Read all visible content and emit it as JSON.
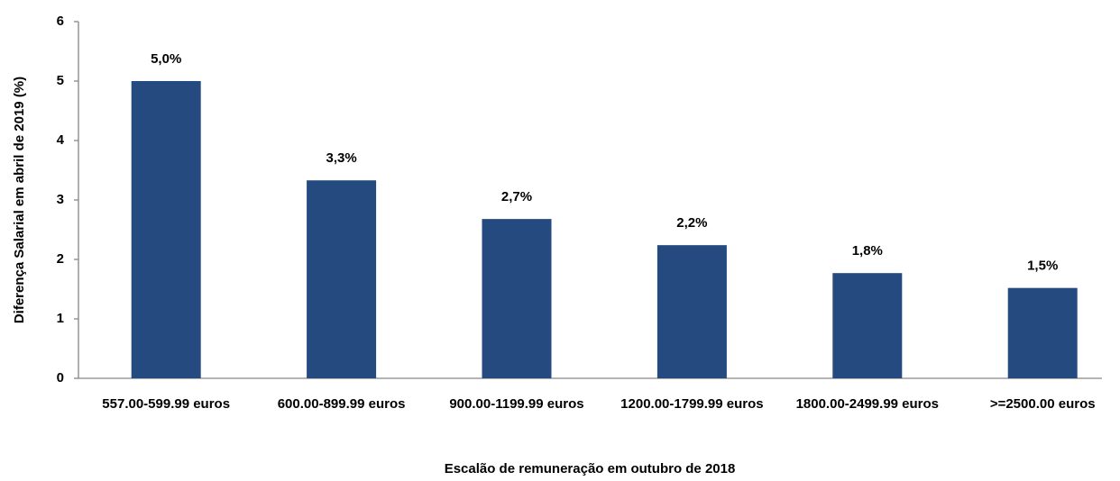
{
  "chart_data": {
    "type": "bar",
    "x_label": "Escalão de remuneração em outubro de 2018",
    "y_label": "Diferença Salarial em abril de 2019 (%)",
    "categories": [
      "557.00-599.99 euros",
      "600.00-899.99 euros",
      "900.00-1199.99 euros",
      "1200.00-1799.99 euros",
      "1800.00-2499.99 euros",
      ">=2500.00 euros"
    ],
    "values": [
      5.0,
      3.33,
      2.68,
      2.24,
      1.77,
      1.52
    ],
    "value_labels": [
      "5,0%",
      "3,3%",
      "2,7%",
      "2,2%",
      "1,8%",
      "1,5%"
    ],
    "color": "#244a80",
    "ylim": [
      0,
      6
    ],
    "yticks": [
      0,
      1,
      2,
      3,
      4,
      5,
      6
    ],
    "grid": false
  }
}
